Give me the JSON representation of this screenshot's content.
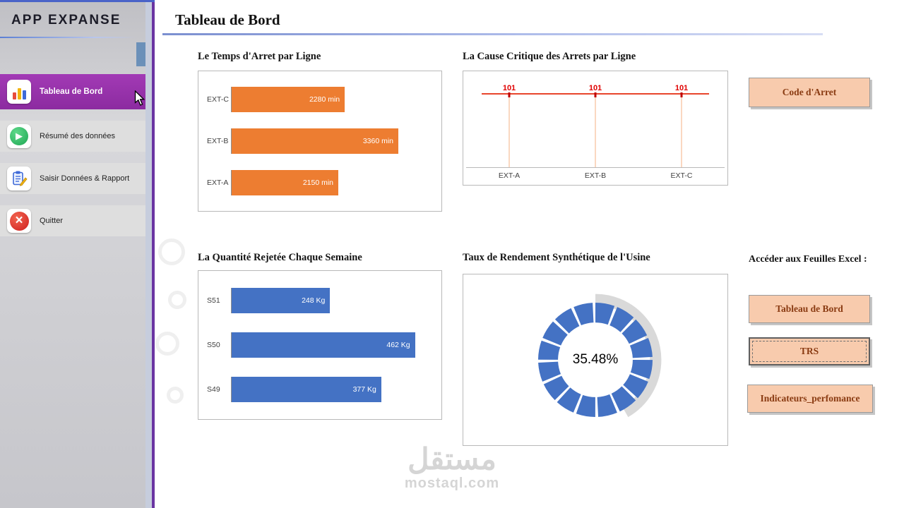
{
  "app": {
    "title": "APP EXPANSE"
  },
  "sidebar": {
    "items": [
      {
        "label": "Tableau de Bord",
        "icon": "bar-chart-icon",
        "active": true
      },
      {
        "label": "Résumé des données",
        "icon": "green-arrow-icon",
        "active": false
      },
      {
        "label": "Saisir Données & Rapport",
        "icon": "clipboard-icon",
        "active": false
      },
      {
        "label": "Quitter",
        "icon": "red-x-icon",
        "active": false
      }
    ]
  },
  "header": {
    "title": "Tableau de Bord"
  },
  "chart_data": [
    {
      "type": "bar",
      "orientation": "horizontal",
      "title": "Le Temps d'Arret par Ligne",
      "categories": [
        "EXT-C",
        "EXT-B",
        "EXT-A"
      ],
      "values": [
        2280,
        3360,
        2150
      ],
      "labels": [
        "2280 min",
        "3360 min",
        "2150 min"
      ],
      "xlim": [
        0,
        4000
      ],
      "color": "#ED7D31"
    },
    {
      "type": "line",
      "title": "La Cause Critique des Arrets par Ligne",
      "categories": [
        "EXT-A",
        "EXT-B",
        "EXT-C"
      ],
      "values": [
        101,
        101,
        101
      ],
      "labels": [
        "101",
        "101",
        "101"
      ],
      "line_color": "#E8452C",
      "label_color": "#E00000"
    },
    {
      "type": "bar",
      "orientation": "horizontal",
      "title": "La Quantité Rejetée Chaque Semaine",
      "categories": [
        "S51",
        "S50",
        "S49"
      ],
      "values": [
        248,
        462,
        377
      ],
      "labels": [
        "248 Kg",
        "462 Kg",
        "377 Kg"
      ],
      "xlim": [
        0,
        500
      ],
      "color": "#4472C4"
    },
    {
      "type": "donut",
      "title": "Taux de Rendement Synthétique de l'Usine",
      "value": 35.48,
      "label": "35.48%",
      "ring_color": "#4472C4",
      "arc_color": "#d9d9d9"
    }
  ],
  "right_panel": {
    "code_arret": "Code d'Arret",
    "excel_label": "Accéder aux Feuilles Excel :",
    "tableau": "Tableau de Bord",
    "trs": "TRS",
    "indicateurs": "Indicateurs_perfomance"
  },
  "watermark": {
    "arabic": "مستقل",
    "domain": "mostaql.com"
  }
}
